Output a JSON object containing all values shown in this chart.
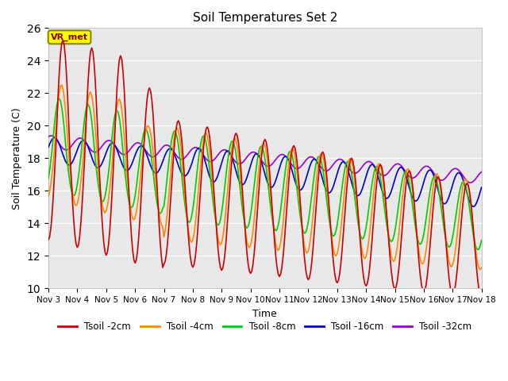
{
  "title": "Soil Temperatures Set 2",
  "xlabel": "Time",
  "ylabel": "Soil Temperature (C)",
  "ylim": [
    10,
    26
  ],
  "xlim": [
    0,
    360
  ],
  "yticks": [
    10,
    12,
    14,
    16,
    18,
    20,
    22,
    24,
    26
  ],
  "xtick_labels": [
    "Nov 3",
    "Nov 4",
    "Nov 5",
    "Nov 6",
    "Nov 7",
    "Nov 8",
    "Nov 9",
    "Nov 10",
    "Nov 11",
    "Nov 12",
    "Nov 13",
    "Nov 14",
    "Nov 15",
    "Nov 16",
    "Nov 17",
    "Nov 18"
  ],
  "xtick_positions": [
    0,
    24,
    48,
    72,
    96,
    120,
    144,
    168,
    192,
    216,
    240,
    264,
    288,
    312,
    336,
    360
  ],
  "legend_labels": [
    "Tsoil -2cm",
    "Tsoil -4cm",
    "Tsoil -8cm",
    "Tsoil -16cm",
    "Tsoil -32cm"
  ],
  "line_colors": [
    "#cc0000",
    "#ff8800",
    "#00cc00",
    "#0000cc",
    "#9900cc"
  ],
  "background_color": "#e8e8e8",
  "label_box_color": "#ffff00",
  "label_box_text": "VR_met",
  "label_box_text_color": "#880000",
  "figsize": [
    6.4,
    4.8
  ],
  "dpi": 100
}
